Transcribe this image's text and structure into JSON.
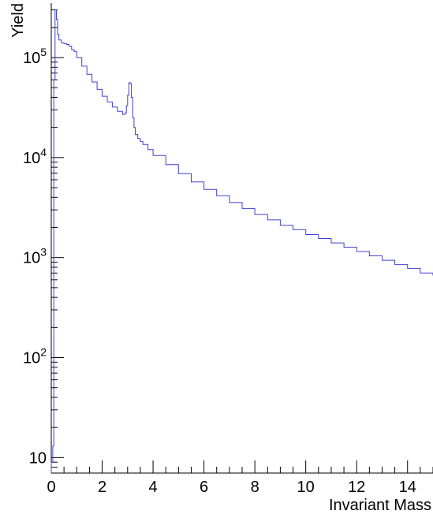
{
  "chart_data": {
    "type": "line",
    "style": "step-histogram",
    "title": "",
    "xlabel": "Invariant Mass",
    "ylabel": "Yield",
    "xlim": [
      0,
      15
    ],
    "ylim": [
      7,
      350000
    ],
    "yscale": "log",
    "grid": false,
    "legend": "none",
    "x_ticks": [
      "0",
      "2",
      "4",
      "6",
      "8",
      "10",
      "12",
      "14"
    ],
    "y_ticks": [
      {
        "value": 10,
        "label": "10"
      },
      {
        "value": 100,
        "label": "10^2"
      },
      {
        "value": 1000,
        "label": "10^3"
      },
      {
        "value": 10000,
        "label": "10^4"
      },
      {
        "value": 100000,
        "label": "10^5"
      }
    ],
    "series": [
      {
        "color": "#4040d0",
        "x": [
          0.0,
          0.06,
          0.1,
          0.15,
          0.2,
          0.25,
          0.3,
          0.4,
          0.5,
          0.6,
          0.7,
          0.8,
          0.9,
          1.0,
          1.2,
          1.4,
          1.6,
          1.8,
          2.0,
          2.2,
          2.4,
          2.6,
          2.8,
          2.9,
          2.95,
          3.0,
          3.05,
          3.1,
          3.15,
          3.2,
          3.25,
          3.3,
          3.4,
          3.5,
          3.6,
          3.8,
          4.0,
          4.5,
          5.0,
          5.5,
          6.0,
          6.5,
          7.0,
          7.5,
          8.0,
          8.5,
          9.0,
          9.5,
          10.0,
          10.5,
          11.0,
          11.5,
          12.0,
          12.5,
          13.0,
          13.5,
          14.0,
          14.5,
          15.0
        ],
        "y": [
          9,
          13,
          60000,
          300000,
          240000,
          170000,
          150000,
          140000,
          138000,
          135000,
          130000,
          120000,
          115000,
          100000,
          82000,
          68000,
          57000,
          48000,
          41000,
          36000,
          32000,
          29000,
          27000,
          28000,
          33000,
          42000,
          56000,
          55000,
          40000,
          25000,
          20000,
          17000,
          15500,
          14500,
          13500,
          12000,
          10500,
          8500,
          6900,
          5700,
          4800,
          4150,
          3550,
          3100,
          2700,
          2380,
          2100,
          1900,
          1700,
          1550,
          1400,
          1270,
          1150,
          1040,
          940,
          850,
          780,
          700,
          660
        ]
      }
    ]
  }
}
